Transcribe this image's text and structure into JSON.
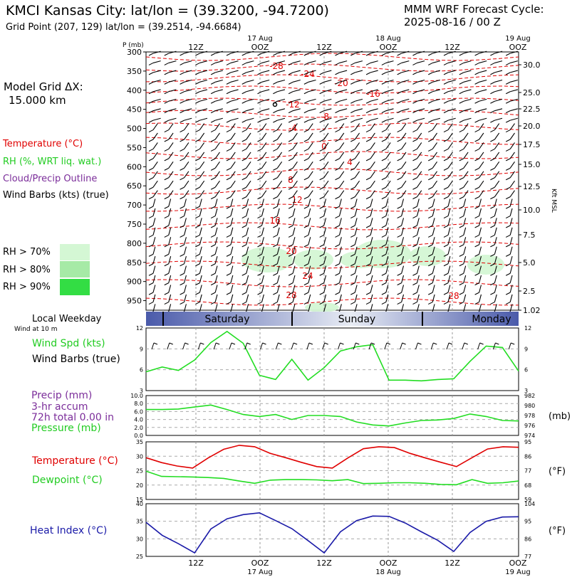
{
  "header": {
    "title": "KMCI Kansas City:  lat/lon = (39.3200, -94.7200)",
    "subtitle": "Grid Point (207, 129) lat/lon = (39.2514, -94.6684)",
    "model_title": "MMM WRF Forecast Cycle:",
    "model_cycle": "2025-08-16 / 00  Z",
    "grid_dx_label": "Model Grid ΔX:",
    "grid_dx_value": "15.000 km"
  },
  "left_legend": {
    "temperature": "Temperature (°C)",
    "rh": "RH (%, WRT liq. wat.)",
    "cloud": "Cloud/Precip Outline",
    "wind": "Wind Barbs (kts) (true)",
    "rh70": "RH > 70%",
    "rh80": "RH > 80%",
    "rh90": "RH > 90%",
    "local_weekday": "Local Weekday",
    "wind_at": "Wind at 10 m",
    "wind_spd": "Wind Spd (kts)",
    "wind_barbs": "Wind Barbs (true)",
    "precip": "Precip (mm)",
    "precip_accum": "3-hr accum",
    "precip_total": "72h total 0.00 in",
    "pressure": "Pressure (mb)",
    "temp2": "Temperature (°C)",
    "dewpoint": "Dewpoint (°C)",
    "heat_index": "Heat Index (°C)"
  },
  "colors": {
    "temperature": "#e00000",
    "green_line": "#22dd22",
    "heat_index": "#1a1aa8",
    "rh70": "#d4f7d4",
    "rh80": "#a6eaa6",
    "rh90": "#33dd44",
    "purple": "#7b2d9a",
    "day_band_dark": "#4a5aaa"
  },
  "time_axis": {
    "top_labels": [
      "12Z",
      "OOZ",
      "12Z",
      "OOZ",
      "12Z",
      "OOZ"
    ],
    "top_dates": [
      "17 Aug",
      "18 Aug",
      "19 Aug"
    ],
    "bottom_labels": [
      "12Z",
      "OOZ",
      "12Z",
      "OOZ",
      "12Z",
      "OOZ"
    ],
    "bottom_dates": [
      "17 Aug",
      "18 Aug",
      "19 Aug"
    ],
    "days": [
      "Saturday",
      "Sunday",
      "Monday"
    ]
  },
  "chart_data": [
    {
      "type": "line",
      "name": "upper-air cross section",
      "y_axis_label": "P (mb)",
      "pressure_ticks": [
        300,
        350,
        400,
        450,
        500,
        550,
        600,
        650,
        700,
        750,
        800,
        850,
        900,
        950
      ],
      "ylim": [
        300,
        975
      ],
      "right_axis_label": "Kft MSL",
      "right_ticks": [
        "30.0",
        "25.0",
        "22.5",
        "20.0",
        "17.5",
        "15.0",
        "12.5",
        "10.0",
        "7.5",
        "5.0",
        "2.5",
        "1.02"
      ],
      "isotherm_labels": [
        "-28",
        "-24",
        "-20",
        "-16",
        "-12",
        "-8",
        "-4",
        "0",
        "4",
        "8",
        "12",
        "16",
        "20",
        "24",
        "28",
        "28"
      ]
    },
    {
      "type": "line",
      "name": "surface wind speed",
      "ylim": [
        3,
        12
      ],
      "yticks": [
        3,
        6,
        9,
        12
      ],
      "series": [
        {
          "name": "Wind Spd (kts)",
          "values": [
            5.7,
            6.4,
            5.9,
            7.4,
            9.9,
            11.5,
            9.8,
            5.2,
            4.6,
            7.5,
            4.5,
            6.3,
            8.7,
            9.3,
            9.6,
            4.5,
            4.5,
            4.4,
            4.6,
            4.7,
            7.2,
            9.4,
            9.2,
            5.8
          ]
        }
      ]
    },
    {
      "type": "line",
      "name": "precip and pressure",
      "left_ticks": [
        "0.0",
        "2.0",
        "4.0",
        "6.0",
        "8.0",
        "10.0"
      ],
      "ylim_left": [
        0,
        10
      ],
      "right_ticks": [
        "974",
        "976",
        "978",
        "980",
        "982"
      ],
      "ylim_right": [
        974,
        982
      ],
      "right_unit": "(mb)",
      "series": [
        {
          "name": "Pressure (mb)",
          "values": [
            979.2,
            979.2,
            979.3,
            979.7,
            980.1,
            979.2,
            978.2,
            977.8,
            978.2,
            977.2,
            978.0,
            978.0,
            977.8,
            976.7,
            976.1,
            975.9,
            976.5,
            977.0,
            977.1,
            977.4,
            978.3,
            977.8,
            977.0,
            976.9
          ]
        },
        {
          "name": "Precip (mm)",
          "values": []
        }
      ]
    },
    {
      "type": "line",
      "name": "temperature and dewpoint",
      "ylim": [
        15,
        35
      ],
      "left_ticks": [
        15,
        20,
        25,
        30,
        35
      ],
      "right_ticks": [
        "59",
        "68",
        "77",
        "86",
        "95"
      ],
      "right_unit": "(°F)",
      "series": [
        {
          "name": "Temperature (°C)",
          "values": [
            29.5,
            27.8,
            26.6,
            25.9,
            29.4,
            32.4,
            33.8,
            33.3,
            31.0,
            29.5,
            27.9,
            26.4,
            25.9,
            29.4,
            32.6,
            33.3,
            33.0,
            31.0,
            29.4,
            27.9,
            26.4,
            29.5,
            32.5,
            33.3,
            33.1
          ]
        },
        {
          "name": "Dewpoint (°C)",
          "values": [
            24.8,
            23.0,
            22.9,
            22.8,
            22.6,
            22.3,
            21.4,
            20.6,
            21.7,
            21.9,
            21.9,
            21.8,
            21.5,
            21.9,
            20.5,
            20.6,
            20.8,
            20.8,
            20.6,
            20.2,
            20.1,
            21.9,
            20.6,
            20.8,
            21.4
          ]
        }
      ]
    },
    {
      "type": "line",
      "name": "heat index",
      "ylim": [
        25,
        40
      ],
      "left_ticks": [
        25,
        30,
        35,
        40
      ],
      "right_ticks": [
        "77",
        "86",
        "95",
        "104"
      ],
      "right_unit": "(°F)",
      "series": [
        {
          "name": "Heat Index (°C)",
          "values": [
            34.7,
            31.0,
            28.6,
            26.0,
            32.8,
            35.7,
            36.9,
            37.4,
            35.2,
            32.9,
            29.5,
            26.0,
            32.0,
            35.2,
            36.5,
            36.4,
            34.5,
            32.0,
            29.6,
            26.4,
            31.8,
            35.0,
            36.2,
            36.3
          ]
        }
      ]
    }
  ]
}
